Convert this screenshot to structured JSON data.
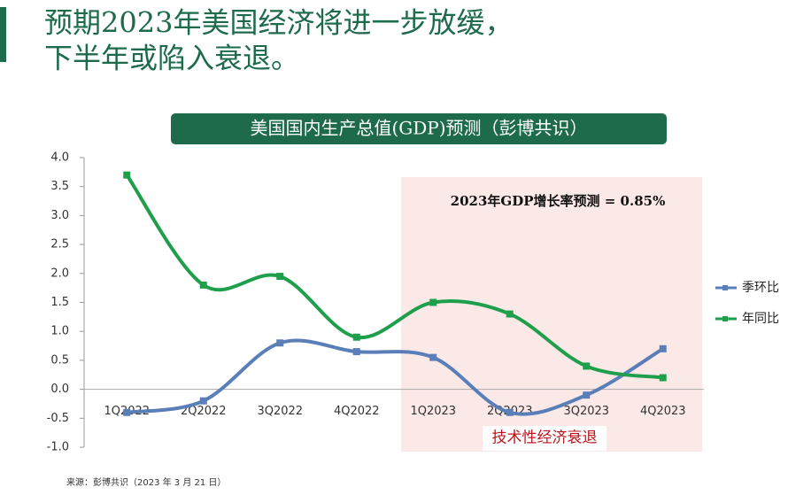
{
  "header": {
    "title_lines": [
      "预期2023年美国经济将进一步放缓，",
      "下半年或陷入衰退。"
    ]
  },
  "chart_data": {
    "type": "line",
    "title": "美国国内生产总值(GDP)预测（彭博共识）",
    "categories": [
      "1Q2022",
      "2Q2022",
      "3Q2022",
      "4Q2022",
      "1Q2023",
      "2Q2023",
      "3Q2023",
      "4Q2023"
    ],
    "series": [
      {
        "name": "季环比",
        "color": "#5a7fb8",
        "values": [
          -0.4,
          -0.2,
          0.8,
          0.65,
          0.55,
          -0.4,
          -0.1,
          0.7
        ]
      },
      {
        "name": "年同比",
        "color": "#1f9f4c",
        "values": [
          3.7,
          1.8,
          1.95,
          0.9,
          1.5,
          1.3,
          0.4,
          0.2
        ]
      }
    ],
    "ylim": [
      -1,
      4
    ],
    "yticks": [
      {
        "value": -1,
        "label": "-1.0"
      },
      -0.5,
      {
        "value": 0,
        "label": "0.0"
      },
      0.5,
      {
        "value": 1,
        "label": "1.0"
      },
      1.5,
      {
        "value": 2,
        "label": "2.0"
      },
      2.5,
      {
        "value": 3,
        "label": "3.0"
      },
      3.5,
      {
        "value": 4,
        "label": "4.0"
      }
    ],
    "annotations": [
      "2023年GDP增长率预测 = 0.85%",
      "技术性经济衰退"
    ],
    "legend": "right",
    "smooth": true
  },
  "footer": {
    "source": "来源：彭博共识（2023 年 3 月 21 日）"
  }
}
